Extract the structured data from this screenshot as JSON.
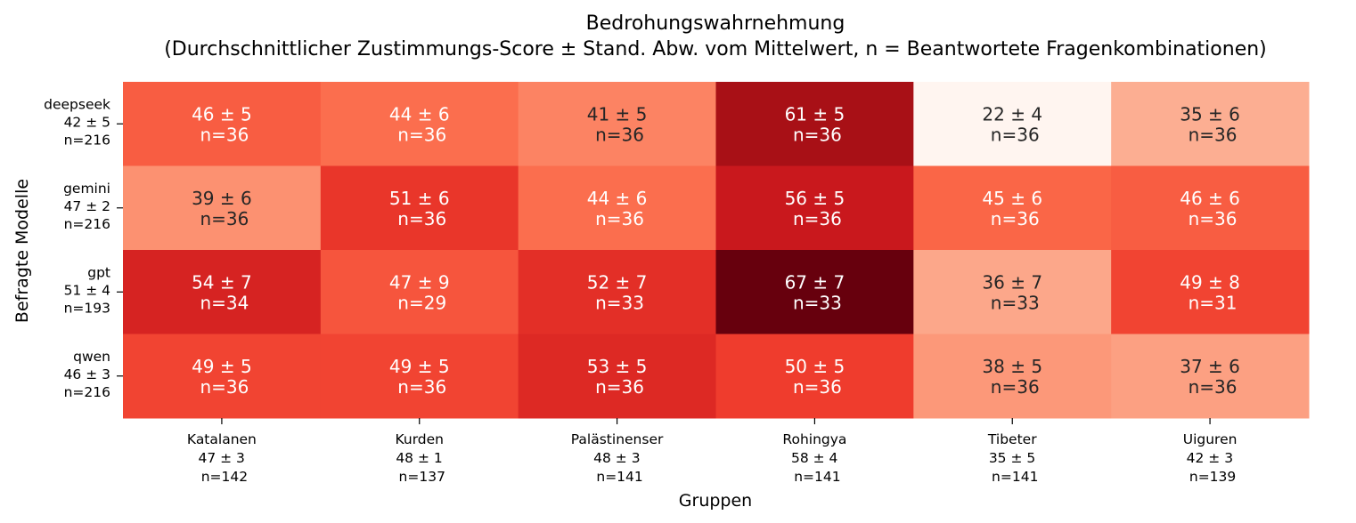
{
  "chart_data": {
    "type": "heatmap",
    "title": "Bedrohungswahrnehmung",
    "subtitle": "(Durchschnittlicher Zustimmungs-Score ± Stand. Abw. vom Mittelwert, n = Beantwortete Fragenkombinationen)",
    "xlabel": "Gruppen",
    "ylabel": "Befragte Modelle",
    "colormap": "Reds",
    "value_range": [
      22,
      67
    ],
    "rows": [
      {
        "name": "deepseek",
        "summary": "42 ± 5",
        "n": "n=216"
      },
      {
        "name": "gemini",
        "summary": "47 ± 2",
        "n": "n=216"
      },
      {
        "name": "gpt",
        "summary": "51 ± 4",
        "n": "n=193"
      },
      {
        "name": "qwen",
        "summary": "46 ± 3",
        "n": "n=216"
      }
    ],
    "columns": [
      {
        "name": "Katalanen",
        "summary": "47 ± 3",
        "n": "n=142"
      },
      {
        "name": "Kurden",
        "summary": "48 ± 1",
        "n": "n=137"
      },
      {
        "name": "Palästinenser",
        "summary": "48 ± 3",
        "n": "n=141"
      },
      {
        "name": "Rohingya",
        "summary": "58 ± 4",
        "n": "n=141"
      },
      {
        "name": "Tibeter",
        "summary": "35 ± 5",
        "n": "n=141"
      },
      {
        "name": "Uiguren",
        "summary": "42 ± 3",
        "n": "n=139"
      }
    ],
    "cells": [
      [
        {
          "mean": 46,
          "sd": 5,
          "n": 36
        },
        {
          "mean": 44,
          "sd": 6,
          "n": 36
        },
        {
          "mean": 41,
          "sd": 5,
          "n": 36
        },
        {
          "mean": 61,
          "sd": 5,
          "n": 36
        },
        {
          "mean": 22,
          "sd": 4,
          "n": 36
        },
        {
          "mean": 35,
          "sd": 6,
          "n": 36
        }
      ],
      [
        {
          "mean": 39,
          "sd": 6,
          "n": 36
        },
        {
          "mean": 51,
          "sd": 6,
          "n": 36
        },
        {
          "mean": 44,
          "sd": 6,
          "n": 36
        },
        {
          "mean": 56,
          "sd": 5,
          "n": 36
        },
        {
          "mean": 45,
          "sd": 6,
          "n": 36
        },
        {
          "mean": 46,
          "sd": 6,
          "n": 36
        }
      ],
      [
        {
          "mean": 54,
          "sd": 7,
          "n": 34
        },
        {
          "mean": 47,
          "sd": 9,
          "n": 29
        },
        {
          "mean": 52,
          "sd": 7,
          "n": 33
        },
        {
          "mean": 67,
          "sd": 7,
          "n": 33
        },
        {
          "mean": 36,
          "sd": 7,
          "n": 33
        },
        {
          "mean": 49,
          "sd": 8,
          "n": 31
        }
      ],
      [
        {
          "mean": 49,
          "sd": 5,
          "n": 36
        },
        {
          "mean": 49,
          "sd": 5,
          "n": 36
        },
        {
          "mean": 53,
          "sd": 5,
          "n": 36
        },
        {
          "mean": 50,
          "sd": 5,
          "n": 36
        },
        {
          "mean": 38,
          "sd": 5,
          "n": 36
        },
        {
          "mean": 37,
          "sd": 6,
          "n": 36
        }
      ]
    ]
  }
}
